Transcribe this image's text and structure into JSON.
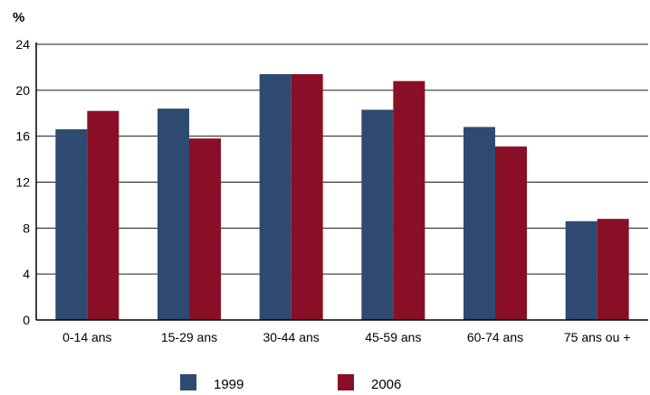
{
  "chart_data": {
    "type": "bar",
    "unit_label": "%",
    "categories": [
      "0-14 ans",
      "15-29 ans",
      "30-44 ans",
      "45-59 ans",
      "60-74 ans",
      "75 ans ou +"
    ],
    "series": [
      {
        "name": "1999",
        "color": "#2e4a70",
        "values": [
          16.6,
          18.4,
          21.4,
          18.3,
          16.8,
          8.6
        ]
      },
      {
        "name": "2006",
        "color": "#8a0f26",
        "values": [
          18.2,
          15.8,
          21.4,
          20.8,
          15.1,
          8.8
        ]
      }
    ],
    "yticks": [
      0,
      4,
      8,
      12,
      16,
      20,
      24
    ],
    "ylim": [
      0,
      24
    ],
    "grid": true,
    "legend_position": "bottom"
  }
}
